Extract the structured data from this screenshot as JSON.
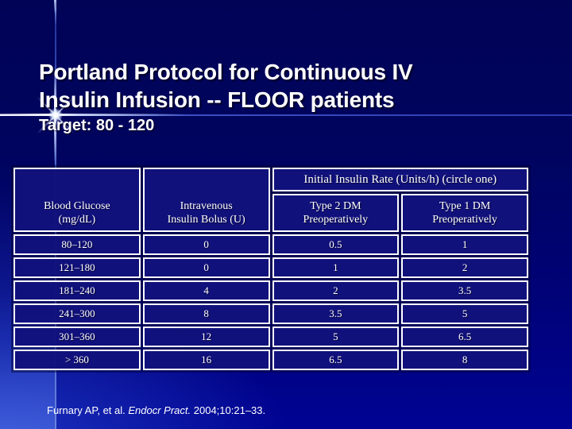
{
  "slide": {
    "title_line1": "Portland Protocol for Continuous IV",
    "title_line2": "Insulin Infusion -- FLOOR patients",
    "subtitle": "Target: 80 - 120",
    "footnote": {
      "author": "Furnary AP, et al. ",
      "journal": "Endocr Pract.",
      "rest": " 2004;10:21–33."
    },
    "colors": {
      "background_top": "#000356",
      "background_bottom": "#000393",
      "table_cell_fill": "#12127e",
      "table_border": "#ffffff",
      "accent_line": "#4a63cc",
      "text": "#ffffff"
    }
  },
  "table": {
    "span_header": "Initial Insulin Rate (Units/h) (circle one)",
    "col_headers": [
      {
        "line1": "Blood Glucose",
        "line2": "(mg/dL)"
      },
      {
        "line1": "Intravenous",
        "line2": "Insulin Bolus (U)"
      },
      {
        "line1": "Type 2 DM",
        "line2": "Preoperatively"
      },
      {
        "line1": "Type 1 DM",
        "line2": "Preoperatively"
      }
    ],
    "rows": [
      [
        "80–120",
        "0",
        "0.5",
        "1"
      ],
      [
        "121–180",
        "0",
        "1",
        "2"
      ],
      [
        "181–240",
        "4",
        "2",
        "3.5"
      ],
      [
        "241–300",
        "8",
        "3.5",
        "5"
      ],
      [
        "301–360",
        "12",
        "5",
        "6.5"
      ],
      [
        "> 360",
        "16",
        "6.5",
        "8"
      ]
    ]
  }
}
